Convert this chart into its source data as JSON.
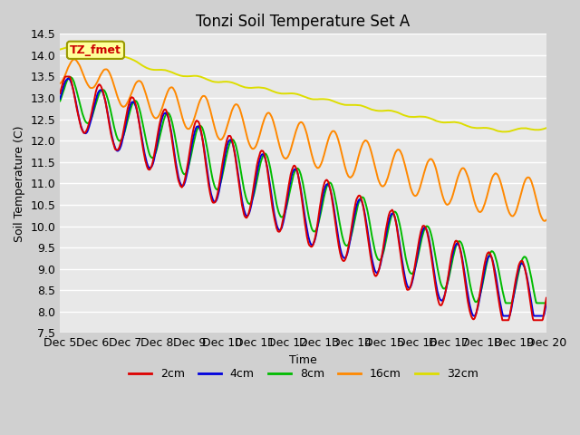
{
  "title": "Tonzi Soil Temperature Set A",
  "xlabel": "Time",
  "ylabel": "Soil Temperature (C)",
  "ylim": [
    7.5,
    14.5
  ],
  "annotation": "TZ_fmet",
  "annotation_color": "#cc0000",
  "annotation_bg": "#ffff99",
  "plot_bg": "#e8e8e8",
  "fig_bg": "#d0d0d0",
  "series_colors": {
    "2cm": "#dd0000",
    "4cm": "#0000dd",
    "8cm": "#00bb00",
    "16cm": "#ff8800",
    "32cm": "#dddd00"
  },
  "x_tick_labels": [
    "Dec 5",
    "Dec 6",
    "Dec 7",
    "Dec 8",
    "Dec 9",
    "Dec 10",
    "Dec 11",
    "Dec 12",
    "Dec 13",
    "Dec 14",
    "Dec 15",
    "Dec 16",
    "Dec 17",
    "Dec 18",
    "Dec 19",
    "Dec 20"
  ],
  "yticks": [
    7.5,
    8.0,
    8.5,
    9.0,
    9.5,
    10.0,
    10.5,
    11.0,
    11.5,
    12.0,
    12.5,
    13.0,
    13.5,
    14.0,
    14.5
  ]
}
